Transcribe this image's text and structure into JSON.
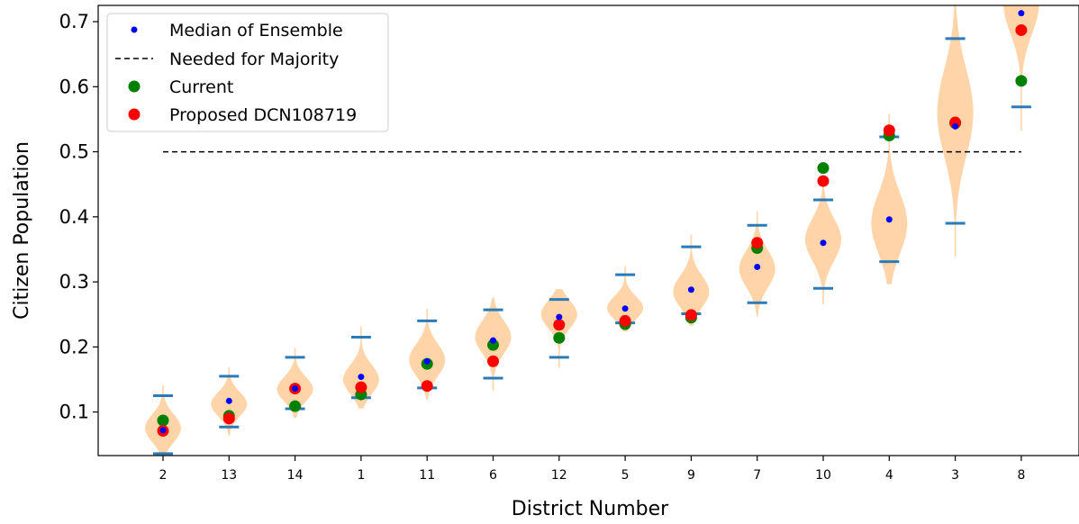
{
  "chart_data": {
    "type": "violin",
    "xlabel": "District Number",
    "ylabel": "Citizen Population",
    "ylim": [
      0.033,
      0.725
    ],
    "yticks": [
      0.1,
      0.2,
      0.3,
      0.4,
      0.5,
      0.6,
      0.7
    ],
    "categories": [
      "2",
      "13",
      "14",
      "1",
      "11",
      "6",
      "12",
      "5",
      "9",
      "7",
      "10",
      "4",
      "3",
      "8"
    ],
    "majority_threshold": 0.5,
    "legend_placement": "top-left",
    "grid": false,
    "colors": {
      "violin": "#ffcc99",
      "extrema": "#2b7bb9",
      "median": "#0000ff",
      "current": "#008000",
      "proposed": "#ff0000",
      "majority_line": "#000000"
    },
    "legend": [
      {
        "label": "Median of Ensemble",
        "marker": "small-dot",
        "color": "#0000ff"
      },
      {
        "label": "Needed for Majority",
        "marker": "dashed-line",
        "color": "#000000"
      },
      {
        "label": "Current",
        "marker": "dot",
        "color": "#008000"
      },
      {
        "label": "Proposed DCN108719",
        "marker": "dot",
        "color": "#ff0000"
      }
    ],
    "series": [
      {
        "name": "Median of Ensemble",
        "values": [
          0.072,
          0.117,
          0.136,
          0.154,
          0.178,
          0.21,
          0.246,
          0.259,
          0.288,
          0.323,
          0.36,
          0.396,
          0.539,
          0.713
        ]
      },
      {
        "name": "Current",
        "values": [
          0.087,
          0.094,
          0.109,
          0.127,
          0.174,
          0.203,
          0.214,
          0.235,
          0.245,
          0.352,
          0.475,
          0.525,
          0.544,
          0.609
        ]
      },
      {
        "name": "Proposed DCN108719",
        "values": [
          0.071,
          0.09,
          0.136,
          0.138,
          0.14,
          0.178,
          0.234,
          0.24,
          0.249,
          0.36,
          0.455,
          0.533,
          0.545,
          0.687
        ]
      }
    ],
    "ensemble_min": [
      0.036,
      0.077,
      0.105,
      0.122,
      0.137,
      0.152,
      0.184,
      0.237,
      0.251,
      0.268,
      0.29,
      0.331,
      0.39,
      0.569
    ],
    "ensemble_max": [
      0.125,
      0.155,
      0.184,
      0.215,
      0.24,
      0.257,
      0.273,
      0.311,
      0.354,
      0.387,
      0.426,
      0.523,
      0.674,
      0.77
    ],
    "ensemble_mode": [
      0.075,
      0.112,
      0.135,
      0.15,
      0.18,
      0.215,
      0.25,
      0.26,
      0.285,
      0.32,
      0.365,
      0.39,
      0.56,
      0.73
    ]
  }
}
